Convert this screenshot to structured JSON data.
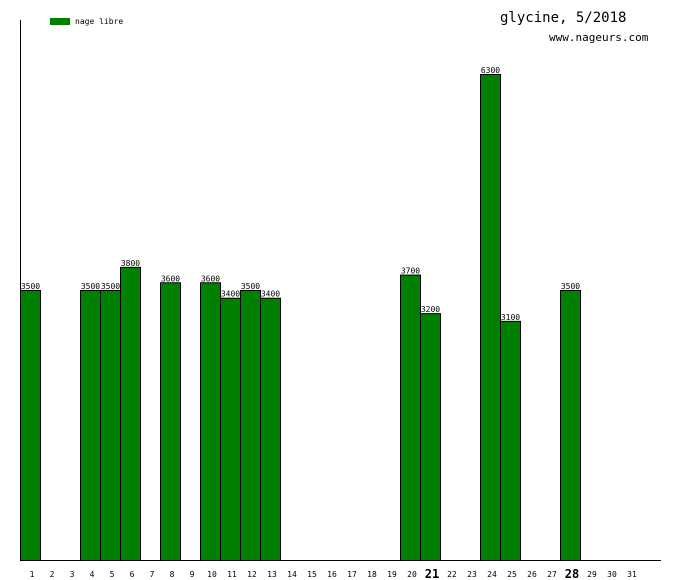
{
  "chart_data": {
    "type": "bar",
    "title": "glycine, 5/2018",
    "subtitle": "www.nageurs.com",
    "legend": [
      {
        "label": "nage libre",
        "color": "#008000"
      }
    ],
    "bar_color": "#008000",
    "categories": [
      "1",
      "2",
      "3",
      "4",
      "5",
      "6",
      "7",
      "8",
      "9",
      "10",
      "11",
      "12",
      "13",
      "14",
      "15",
      "16",
      "17",
      "18",
      "19",
      "20",
      "21",
      "22",
      "23",
      "24",
      "25",
      "26",
      "27",
      "28",
      "29",
      "30",
      "31"
    ],
    "bold_categories": [
      "21",
      "28"
    ],
    "values": [
      3500,
      null,
      null,
      3500,
      3500,
      3800,
      null,
      3600,
      null,
      3600,
      3400,
      3500,
      3400,
      null,
      null,
      null,
      null,
      null,
      null,
      3700,
      3200,
      null,
      null,
      6300,
      3100,
      null,
      null,
      3500,
      null,
      null,
      null
    ],
    "ylim": [
      0,
      7000
    ],
    "grid": false
  }
}
